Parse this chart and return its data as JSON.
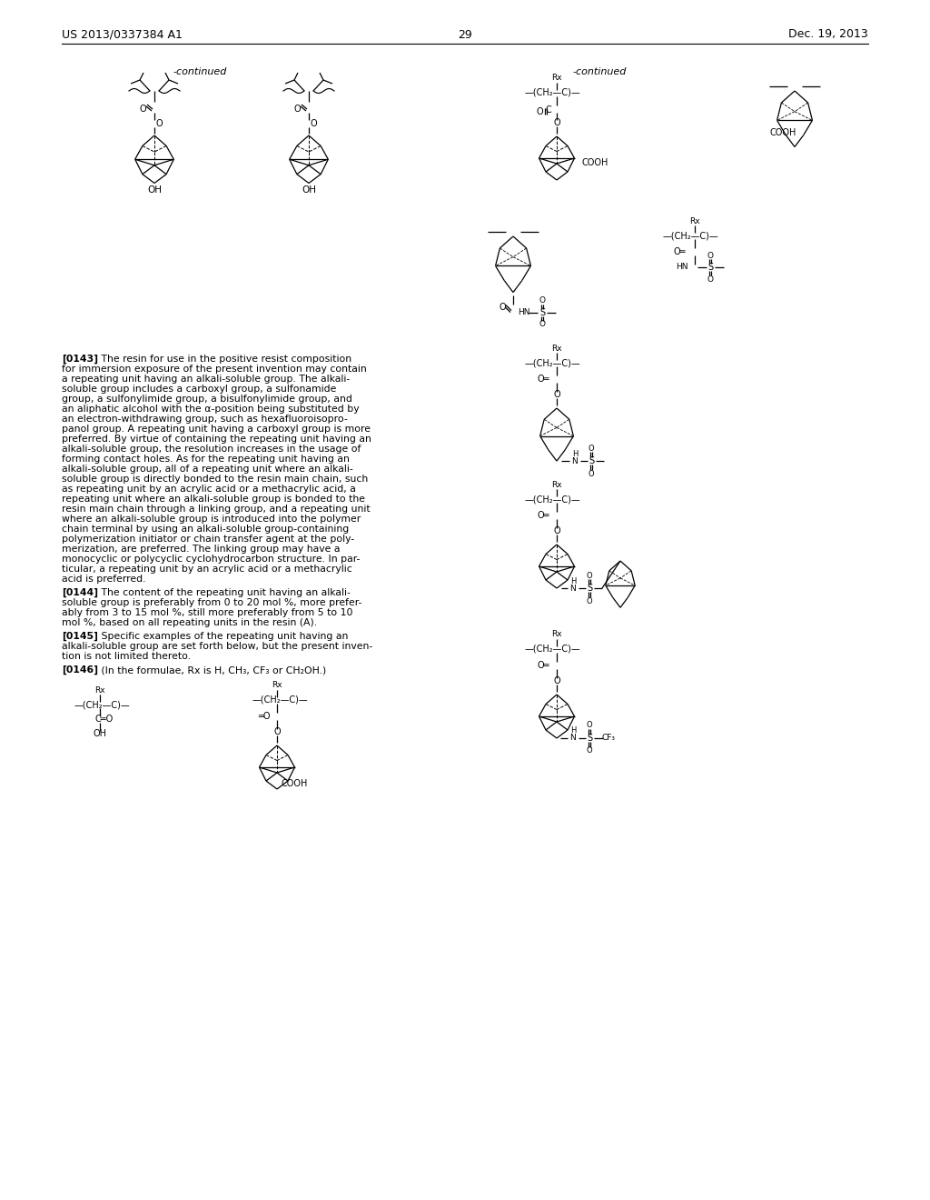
{
  "bg": "#ffffff",
  "header_left": "US 2013/0337384 A1",
  "header_right": "Dec. 19, 2013",
  "page_number": "29",
  "p143": "[0143]   The resin for use in the positive resist composition for immersion exposure of the present invention may contain a repeating unit having an alkali-soluble group. The alkali-soluble group includes a carboxyl group, a sulfonamide group, a sulfonylimide group, a bisulfonylimide group, and an aliphatic alcohol with the α-position being substituted by an electron-withdrawing group, such as hexafluoroisopropanol group. A repeating unit having a carboxyl group is more preferred. By virtue of containing the repeating unit having an alkali-soluble group, the resolution increases in the usage of forming contact holes. As for the repeating unit having an alkali-soluble group, all of a repeating unit where an alkali-soluble group is directly bonded to the resin main chain, such as repeating unit by an acrylic acid or a methacrylic acid, a repeating unit where an alkali-soluble group is bonded to the resin main chain through a linking group, and a repeating unit where an alkali-soluble group is introduced into the polymer chain terminal by using an alkali-soluble group-containing polymerization initiator or chain transfer agent at the polymerization, are preferred. The linking group may have a monocyclic or polycyclic cyclohydrocarbon structure. In particular, a repeating unit by an acrylic acid or a methacrylic acid is preferred.",
  "p144": "[0144]   The content of the repeating unit having an alkali-soluble group is preferably from 0 to 20 mol %, more preferably from 3 to 15 mol %, still more preferably from 5 to 10 mol %, based on all repeating units in the resin (A).",
  "p145": "[0145]   Specific examples of the repeating unit having an alkali-soluble group are set forth below, but the present invention is not limited thereto.",
  "p146": "[0146]   (In the formulae, Rx is H, CH₃, CF₃ or CH₂OH.)"
}
